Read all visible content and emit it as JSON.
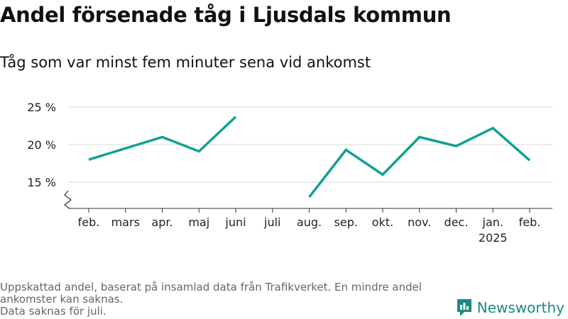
{
  "title": "Andel försenade tåg i Ljusdals kommun",
  "subtitle": "Tåg som var minst fem minuter sena vid ankomst",
  "footer": {
    "note1": "Uppskattad andel, baserat på insamlad data från Trafikverket. En mindre andel ankomster kan saknas.",
    "note2": "Data saknas för juli."
  },
  "brand": {
    "name": "Newsworthy",
    "color": "#1a8a83"
  },
  "chart_data": {
    "type": "line",
    "categories": [
      "feb.",
      "mars",
      "apr.",
      "maj",
      "juni",
      "juli",
      "aug.",
      "sep.",
      "okt.",
      "nov.",
      "dec.",
      "jan.",
      "feb."
    ],
    "year_label": "2025",
    "year_label_under": "jan.",
    "series": [
      {
        "values": [
          18.0,
          19.5,
          21.0,
          19.1,
          23.7,
          null,
          13.0,
          19.3,
          16.0,
          21.0,
          19.8,
          22.2,
          17.9
        ],
        "color": "#12a096"
      }
    ],
    "y_ticks": [
      15,
      20,
      25
    ],
    "y_tick_labels": [
      "15 %",
      "20 %",
      "25 %"
    ],
    "ylim": [
      11.5,
      25
    ],
    "axis_break": true,
    "grid": true
  }
}
